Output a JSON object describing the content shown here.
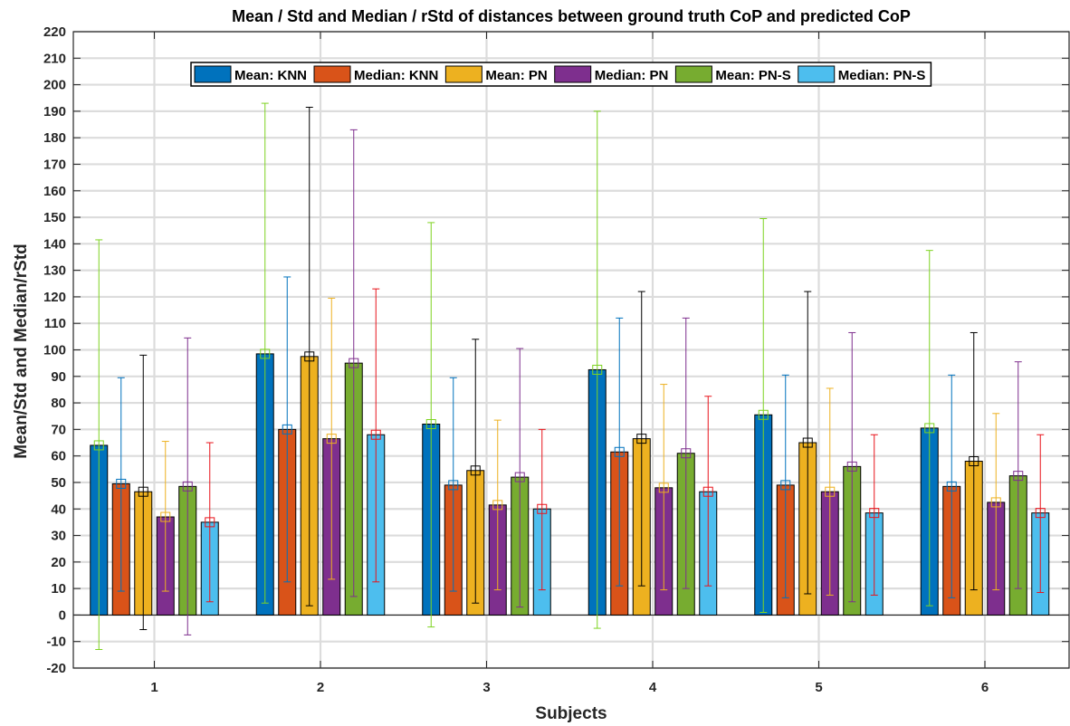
{
  "chart_data": {
    "type": "bar",
    "title": "Mean / Std and Median / rStd of distances between ground truth CoP and predicted CoP",
    "xlabel": "Subjects",
    "ylabel": "Mean/Std and Median/rStd",
    "ylim": [
      -20,
      220
    ],
    "ytick_step": 10,
    "grid": true,
    "legend_location": "top-right",
    "categories": [
      "1",
      "2",
      "3",
      "4",
      "5",
      "6"
    ],
    "series": [
      {
        "name": "Mean: KNN",
        "color": "#0072BD",
        "err_color": "#7ED321",
        "values": [
          64,
          98.5,
          72,
          92.5,
          75.5,
          70.5
        ],
        "err_low": [
          -13,
          4.5,
          -4.5,
          -5,
          1,
          3.5
        ],
        "err_high": [
          141.5,
          193,
          148,
          190,
          149.5,
          137.5
        ]
      },
      {
        "name": "Median: KNN",
        "color": "#D95319",
        "err_color": "#0072BD",
        "values": [
          49.5,
          70,
          49,
          61.5,
          49,
          48.5
        ],
        "err_low": [
          9,
          12.5,
          9,
          11,
          6.5,
          6.5
        ],
        "err_high": [
          89.5,
          127.5,
          89.5,
          112,
          90.5,
          90.5
        ]
      },
      {
        "name": "Mean: PN",
        "color": "#EDB120",
        "err_color": "#000000",
        "values": [
          46.5,
          97.5,
          54.5,
          66.5,
          65,
          58
        ],
        "err_low": [
          -5.5,
          3.5,
          4.5,
          11,
          8,
          9.5
        ],
        "err_high": [
          98,
          191.5,
          104,
          122,
          122,
          106.5
        ]
      },
      {
        "name": "Median: PN",
        "color": "#7E2F8E",
        "err_color": "#EDB120",
        "values": [
          37,
          66.5,
          41.5,
          48,
          46.5,
          42.5
        ],
        "err_low": [
          9,
          13.5,
          9.5,
          9.5,
          7.5,
          9.5
        ],
        "err_high": [
          65.5,
          119.5,
          73.5,
          87,
          85.5,
          76
        ]
      },
      {
        "name": "Mean: PN-S",
        "color": "#77AC30",
        "err_color": "#7E2F8E",
        "values": [
          48.5,
          95,
          52,
          61,
          56,
          52.5
        ],
        "err_low": [
          -7.5,
          7,
          3,
          10,
          5,
          10
        ],
        "err_high": [
          104.5,
          183,
          100.5,
          112,
          106.5,
          95.5
        ]
      },
      {
        "name": "Median: PN-S",
        "color": "#4DBEEE",
        "err_color": "#E8141B",
        "values": [
          35,
          68,
          40,
          46.5,
          38.5,
          38.5
        ],
        "err_low": [
          5,
          12.5,
          9.5,
          11,
          7.5,
          8.5
        ],
        "err_high": [
          65,
          123,
          70,
          82.5,
          68,
          68
        ]
      }
    ]
  }
}
